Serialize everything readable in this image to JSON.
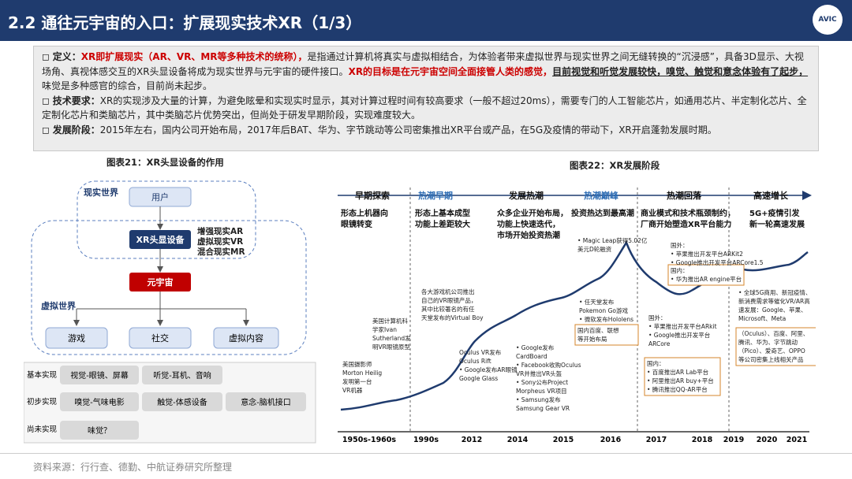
{
  "header": {
    "title": "2.2 通往元宇宙的入口：扩展现实技术XR（1/3）",
    "logo": "AVIC"
  },
  "definition": {
    "l1_label": "定义：",
    "l1_red1": "XR即扩展现实（AR、VR、MR等多种技术的统称），",
    "l1_text1": "是指通过计算机将真实与虚拟相结合，为体验者带来虚拟世界与现实世界之间无缝转换的“沉浸感”，具备3D显示、大视场角、真视体感交互的XR头显设备将成为现实世界与元宇宙的硬件接口。",
    "l1_red2": "XR的目标是在元宇宙空间全面接管人类的感觉，",
    "l1_u": "目前视觉和听觉发展较快，嗅觉、触觉和意念体验有了起步，",
    "l1_text2": "味觉是多种感官的综合，目前尚未起步。",
    "l2_label": "技术要求：",
    "l2_text": "XR的实现涉及大量的计算，为避免眩晕和实现实时显示，其对计算过程时间有较高要求（一般不超过20ms），需要专门的人工智能芯片，如通用芯片、半定制化芯片、全定制化芯片和类脑芯片，其中类脑芯片优势突出，但尚处于研发早期阶段，实现难度较大。",
    "l3_label": "发展阶段：",
    "l3_text": "2015年左右，国内公司开始布局，2017年后BAT、华为、字节跳动等公司密集推出XR平台或产品，在5G及疫情的带动下，XR开启蓬勃发展时期。"
  },
  "left": {
    "title": "图表21：XR头显设备的作用",
    "real_world": "现实世界",
    "user": "用户",
    "device": "XR头显设备",
    "enh": [
      "增强现实AR",
      "虚拟现实VR",
      "混合现实MR"
    ],
    "metaverse": "元宇宙",
    "virtual_world": "虚拟世界",
    "v_items": [
      "游戏",
      "社交",
      "虚拟内容"
    ],
    "rows": [
      {
        "label": "基本实现",
        "items": [
          "视觉-眼镜、屏幕",
          "听觉-耳机、音响"
        ]
      },
      {
        "label": "初步实现",
        "items": [
          "嗅觉-气味电影",
          "触觉-体感设备",
          "意念-脑机接口"
        ]
      },
      {
        "label": "尚未实现",
        "items": [
          "味觉？"
        ]
      }
    ]
  },
  "right": {
    "title": "图表22：XR发展阶段",
    "phases": [
      "早期探索",
      "热潮早期",
      "发展热潮",
      "热潮巅峰",
      "热潮回落",
      "高速增长"
    ],
    "phase_desc": [
      [
        "形态上机器向",
        "眼镜转变"
      ],
      [
        "形态上基本成型",
        "功能上差距较大"
      ],
      [
        "众多企业开始布局，",
        "功能上快速迭代，",
        "市场开始投资热潮"
      ],
      [
        "投资热达到最高潮"
      ],
      [
        "商业模式和技术瓶颈制约，",
        "厂商开始塑造XR平台能力"
      ],
      [
        "5G+疫情引发",
        "新一轮高速发展"
      ]
    ],
    "years": [
      "1950s-1960s",
      "1990s",
      "2012",
      "2014",
      "2015",
      "2016",
      "2017",
      "2018",
      "2019",
      "2020",
      "2021"
    ],
    "notes": [
      [
        "美国摄影师",
        "Morton Heilig",
        "发明第一台",
        "VR机器"
      ],
      [
        "美国计算机科",
        "学家Ivan",
        "Sutherland发",
        "明VR眼镜原型"
      ],
      [
        "各大游戏机公司推出",
        "自己的VR眼镜产品，",
        "其中比较著名的有任",
        "天堂发布的Virtual Boy"
      ],
      [
        "Oculus VR发布",
        "Oculus Rift",
        "• Google发布AR眼镜",
        "Google Glass"
      ],
      [
        "• Google发布",
        "CardBoard",
        "• Facebook收购Oculus",
        "VR并推出VR头盔",
        "• Sony公布Project",
        "Morpheus VR项目",
        "• Samsung发布",
        "Samsung Gear VR"
      ],
      [
        "• Magic Leap获得5.02亿",
        "美元D轮融资"
      ],
      [
        "• 任天堂发布",
        "Pokemon Go游戏",
        "• 微软发布Hololens"
      ],
      [
        "国内百度、联想",
        "等开始布局"
      ],
      [
        "国外：",
        "• 苹果推出开发平台ARkit",
        "• Google推出开发平台",
        "ARCore"
      ],
      [
        "国内：",
        "• 百度推出AR Lab平台",
        "• 阿里推出AR buy+平台",
        "• 腾讯推出QQ-AR平台"
      ],
      [
        "国外：",
        "• 苹果推出开发平台ARKit2",
        "• Google推出开发平台ARCore1.5"
      ],
      [
        "国内：",
        "• 华为推出AR engine平台"
      ],
      [
        "• 全球5G商用、新冠疫情、",
        "新消费需求等催化VR/AR高",
        "速发展：Google、苹果、",
        "Microsoft、Meta"
      ],
      [
        "（Oculus）、百度、阿里、",
        "腾讯、华为、字节跳动",
        "（Pico）、爱奇艺、OPPO",
        "等公司密集上线相关产品"
      ]
    ]
  },
  "source": "资料来源：行行查、德勤、中航证券研究所整理"
}
